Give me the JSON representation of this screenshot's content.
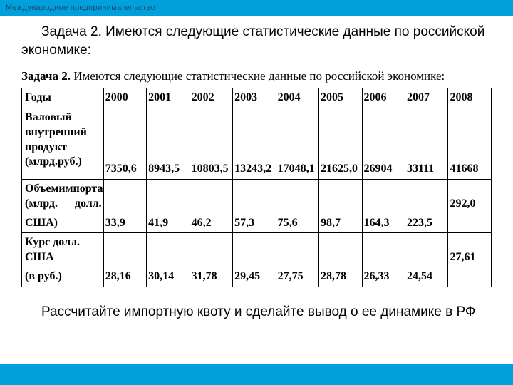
{
  "header": {
    "title": "Международное предпринимательство"
  },
  "intro": "Задача 2. Имеются следующие статистические данные по российской экономике:",
  "table_title_bold": "Задача 2.",
  "table_title_rest": " Имеются следующие статистические данные по российской экономике:",
  "table": {
    "row_labels": {
      "years": "Годы",
      "gdp_l1": "Валовый",
      "gdp_l2": "внутренний",
      "gdp_l3": "продукт",
      "gdp_l4": "(млрд.руб.)",
      "import_l1a": "Объем",
      "import_l1b": "импорта",
      "import_l2a": "(млрд.",
      "import_l2b": "долл.",
      "import_l3": "США)",
      "rate_l1": "Курс долл. США",
      "rate_l2": "(в руб.)"
    },
    "years": [
      "2000",
      "2001",
      "2002",
      "2003",
      "2004",
      "2005",
      "2006",
      "2007",
      "2008"
    ],
    "gdp": [
      "7350,6",
      "8943,5",
      "10803,5",
      "13243,2",
      "17048,1",
      "21625,0",
      "26904",
      "33111",
      "41668"
    ],
    "import_top": [
      "",
      "",
      "",
      "",
      "",
      "",
      "",
      "",
      "292,0"
    ],
    "import": [
      "33,9",
      "41,9",
      "46,2",
      "57,3",
      "75,6",
      "98,7",
      "164,3",
      "223,5",
      ""
    ],
    "rate_top": [
      "",
      "",
      "",
      "",
      "",
      "",
      "",
      "",
      "27,61"
    ],
    "rate": [
      "28,16",
      "30,14",
      "31,78",
      "29,45",
      "27,75",
      "28,78",
      "26,33",
      "24,54",
      ""
    ]
  },
  "footer": "Рассчитайте импортную квоту и сделайте вывод о ее динамике в РФ",
  "colors": {
    "accent": "#00a0dc",
    "header_text": "#1a4a6e"
  }
}
